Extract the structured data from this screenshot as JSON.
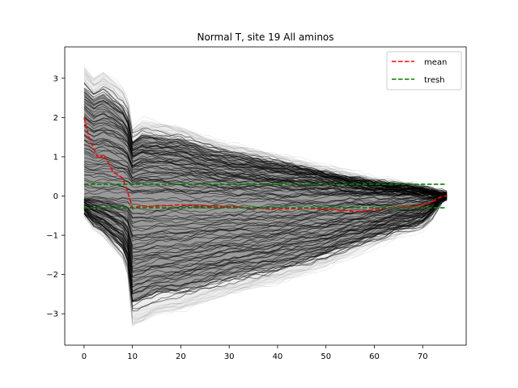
{
  "chart_data": {
    "type": "line",
    "title": "Normal T, site 19 All aminos",
    "xlabel": "",
    "ylabel": "",
    "xlim": [
      -4,
      79
    ],
    "ylim": [
      -3.8,
      3.8
    ],
    "xticks": [
      0,
      10,
      20,
      30,
      40,
      50,
      60,
      70
    ],
    "yticks": [
      -3,
      -2,
      -1,
      0,
      1,
      2,
      3
    ],
    "xtick_labels": [
      "0",
      "10",
      "20",
      "30",
      "40",
      "50",
      "60",
      "70"
    ],
    "ytick_labels": [
      "−3",
      "−2",
      "−1",
      "0",
      "1",
      "2",
      "3"
    ],
    "grid": false,
    "legend_position": "top-right",
    "colors": {
      "traces": "#000000",
      "mean": "#ff0000",
      "tresh": "#008000"
    },
    "series": [
      {
        "name": "mean",
        "style": "dashed",
        "x": [
          0,
          1,
          2,
          3,
          4,
          5,
          6,
          7,
          8,
          9,
          10,
          12,
          14,
          16,
          18,
          20,
          22,
          24,
          26,
          28,
          30,
          32,
          34,
          36,
          38,
          40,
          42,
          44,
          46,
          48,
          50,
          52,
          54,
          56,
          58,
          60,
          62,
          64,
          66,
          68,
          70,
          72,
          74,
          75
        ],
        "values": [
          2.0,
          1.5,
          1.2,
          0.95,
          1.05,
          0.85,
          0.6,
          0.55,
          0.45,
          0.1,
          -0.3,
          -0.25,
          -0.27,
          -0.25,
          -0.24,
          -0.22,
          -0.24,
          -0.25,
          -0.26,
          -0.27,
          -0.27,
          -0.28,
          -0.3,
          -0.31,
          -0.32,
          -0.33,
          -0.33,
          -0.32,
          -0.31,
          -0.33,
          -0.34,
          -0.35,
          -0.37,
          -0.4,
          -0.38,
          -0.34,
          -0.31,
          -0.29,
          -0.28,
          -0.27,
          -0.24,
          -0.15,
          0.0,
          0.0
        ]
      },
      {
        "name": "tresh",
        "style": "dashed",
        "x": [
          0,
          75
        ],
        "values": [
          0.3,
          0.3
        ]
      },
      {
        "name": "tresh",
        "style": "dashed",
        "x": [
          0,
          75
        ],
        "values": [
          -0.3,
          -0.3
        ]
      }
    ],
    "legend": [
      "mean",
      "tresh"
    ],
    "traces_note_visible": false,
    "envelope": {
      "x": [
        0,
        2,
        4,
        6,
        8,
        9.5,
        10,
        12,
        15,
        20,
        25,
        30,
        35,
        40,
        45,
        50,
        55,
        60,
        65,
        68,
        70,
        72,
        74,
        75
      ],
      "upper": [
        3.3,
        3.0,
        3.15,
        2.95,
        2.7,
        2.3,
        1.7,
        1.9,
        1.85,
        1.75,
        1.5,
        1.3,
        1.2,
        1.05,
        0.9,
        0.75,
        0.6,
        0.45,
        0.35,
        0.3,
        0.25,
        0.15,
        0.05,
        0.02
      ],
      "lower": [
        -0.5,
        -0.8,
        -1.0,
        -1.3,
        -1.6,
        -2.2,
        -3.3,
        -3.2,
        -3.0,
        -2.9,
        -2.7,
        -2.5,
        -2.35,
        -2.2,
        -2.0,
        -1.8,
        -1.5,
        -1.25,
        -1.0,
        -0.9,
        -0.8,
        -0.5,
        -0.1,
        -0.02
      ]
    }
  }
}
